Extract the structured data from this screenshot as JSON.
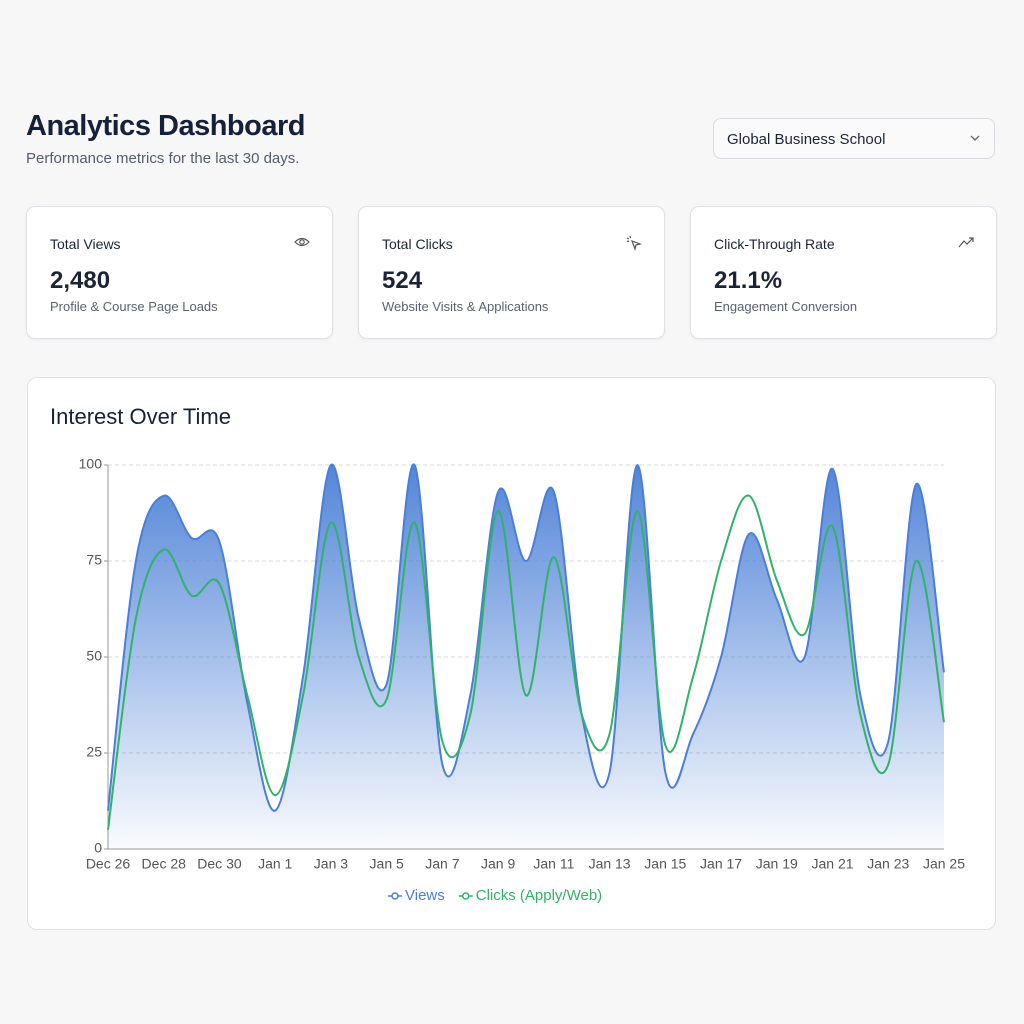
{
  "header": {
    "title": "Analytics Dashboard",
    "subtitle": "Performance metrics for the last 30 days.",
    "selector": "Global Business School"
  },
  "cards": [
    {
      "title": "Total Views",
      "value": "2,480",
      "description": "Profile & Course Page Loads"
    },
    {
      "title": "Total Clicks",
      "value": "524",
      "description": "Website Visits & Applications"
    },
    {
      "title": "Click-Through Rate",
      "value": "21.1%",
      "description": "Engagement Conversion"
    }
  ],
  "chart_data": {
    "type": "line",
    "title": "Interest Over Time",
    "categories": [
      "Dec 26",
      null,
      "Dec 28",
      null,
      "Dec 30",
      null,
      "Jan 1",
      null,
      "Jan 3",
      null,
      "Jan 5",
      null,
      "Jan 7",
      null,
      "Jan 9",
      null,
      "Jan 11",
      null,
      "Jan 13",
      null,
      "Jan 15",
      null,
      "Jan 17",
      null,
      "Jan 19",
      null,
      "Jan 21",
      null,
      "Jan 23",
      null,
      "Jan 25"
    ],
    "series": [
      {
        "name": "Views",
        "color": "#4a7fd6",
        "values": [
          10,
          75,
          92,
          81,
          80,
          38,
          10,
          45,
          100,
          60,
          43,
          100,
          22,
          40,
          93,
          75,
          93,
          35,
          20,
          100,
          20,
          30,
          50,
          82,
          65,
          50,
          99,
          40,
          28,
          95,
          46
        ]
      },
      {
        "name": "Clicks (Apply/Web)",
        "color": "#2fb36a",
        "values": [
          5,
          60,
          78,
          66,
          69,
          40,
          14,
          40,
          85,
          50,
          39,
          85,
          28,
          35,
          88,
          40,
          76,
          35,
          30,
          88,
          27,
          45,
          75,
          92,
          70,
          56,
          84,
          35,
          22,
          75,
          33
        ]
      }
    ],
    "ylim": [
      0,
      100
    ],
    "yticks": [
      0,
      25,
      50,
      75,
      100
    ],
    "grid": true,
    "legend": "bottom"
  }
}
